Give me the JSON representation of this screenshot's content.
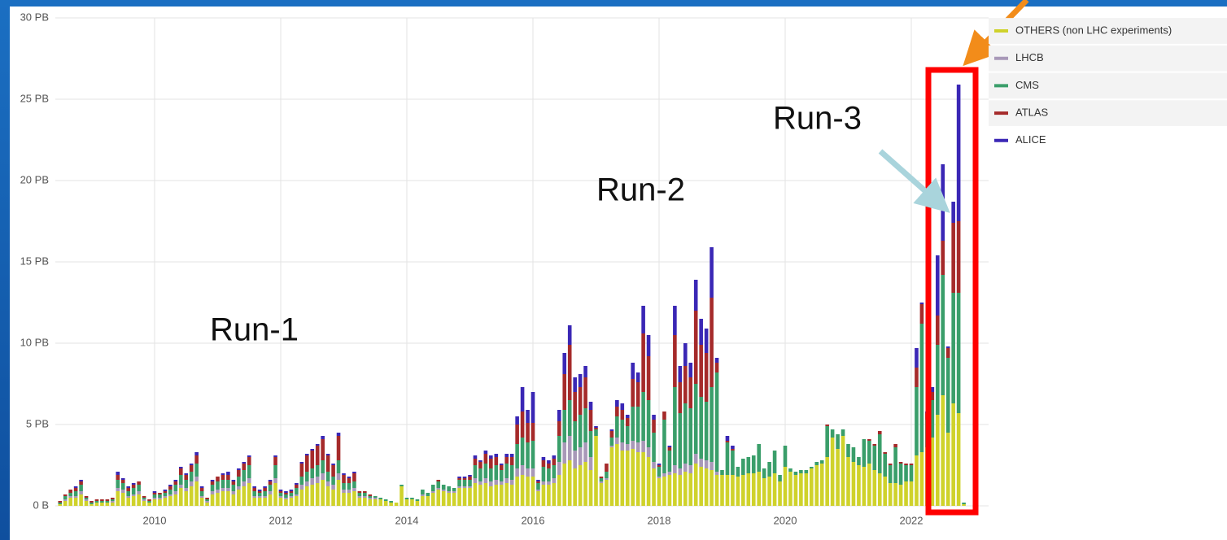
{
  "chart_data": {
    "type": "bar",
    "stacked": true,
    "annotations": [
      "Run-1",
      "Run-2",
      "Run-3"
    ],
    "categories": [
      null,
      null,
      null,
      null,
      null,
      null,
      null,
      null,
      null,
      null,
      null,
      null,
      null,
      null,
      null,
      null,
      null,
      null,
      "2010",
      null,
      null,
      null,
      null,
      null,
      null,
      null,
      null,
      null,
      null,
      null,
      null,
      null,
      null,
      null,
      null,
      null,
      null,
      null,
      null,
      null,
      null,
      null,
      "2012",
      null,
      null,
      null,
      null,
      null,
      null,
      null,
      null,
      null,
      null,
      null,
      null,
      null,
      null,
      null,
      null,
      null,
      null,
      null,
      null,
      null,
      null,
      null,
      "2014",
      null,
      null,
      null,
      null,
      null,
      null,
      null,
      null,
      null,
      null,
      null,
      null,
      null,
      null,
      null,
      null,
      null,
      null,
      null,
      null,
      null,
      null,
      null,
      "2016",
      null,
      null,
      null,
      null,
      null,
      null,
      null,
      null,
      null,
      null,
      null,
      null,
      null,
      null,
      null,
      null,
      null,
      null,
      null,
      null,
      null,
      null,
      null,
      "2018",
      null,
      null,
      null,
      null,
      null,
      null,
      null,
      null,
      null,
      null,
      null,
      null,
      null,
      null,
      null,
      null,
      null,
      null,
      null,
      null,
      null,
      null,
      null,
      "2020",
      null,
      null,
      null,
      null,
      null,
      null,
      null,
      null,
      null,
      null,
      null,
      null,
      null,
      null,
      null,
      null,
      null,
      null,
      null,
      null,
      null,
      null,
      null,
      "2022",
      null,
      null,
      null,
      null,
      null,
      null,
      null,
      null,
      null,
      null
    ],
    "series": [
      {
        "name": "OTHERS (non LHC experiments)",
        "color": "#cfd22b",
        "values": [
          0.1,
          0.3,
          0.5,
          0.5,
          0.7,
          0.3,
          0.1,
          0.2,
          0.2,
          0.2,
          0.2,
          0.9,
          0.8,
          0.5,
          0.6,
          0.7,
          0.3,
          0.2,
          0.4,
          0.4,
          0.5,
          0.6,
          0.7,
          1.1,
          0.9,
          1.2,
          1.5,
          0.5,
          0.2,
          0.7,
          0.8,
          0.9,
          0.9,
          0.7,
          1.0,
          1.2,
          1.4,
          0.5,
          0.5,
          0.5,
          0.7,
          1.4,
          0.5,
          0.4,
          0.5,
          0.6,
          1.0,
          1.2,
          1.3,
          1.4,
          1.6,
          1.2,
          1.0,
          1.6,
          0.8,
          0.8,
          0.9,
          0.5,
          0.5,
          0.4,
          0.4,
          0.4,
          0.3,
          0.2,
          0.2,
          1.2,
          0.4,
          0.4,
          0.3,
          0.6,
          0.6,
          0.8,
          1.0,
          0.9,
          0.8,
          0.8,
          1.1,
          1.1,
          1.1,
          1.4,
          1.3,
          1.4,
          1.2,
          1.3,
          1.3,
          1.4,
          1.3,
          1.8,
          1.9,
          1.8,
          1.8,
          0.9,
          1.3,
          1.3,
          1.4,
          1.9,
          2.6,
          2.8,
          2.3,
          2.5,
          2.7,
          2.2,
          4.3,
          1.4,
          1.6,
          3.6,
          3.8,
          3.4,
          3.4,
          3.5,
          3.3,
          3.3,
          3.0,
          2.3,
          1.7,
          1.8,
          1.9,
          2.0,
          1.9,
          2.1,
          2.0,
          2.6,
          2.4,
          2.3,
          2.2,
          1.9,
          1.9,
          1.9,
          1.9,
          1.8,
          1.9,
          2.0,
          2.0,
          2.1,
          1.7,
          1.8,
          2.0,
          1.5,
          2.4,
          2.1,
          1.9,
          2.0,
          2.0,
          2.3,
          2.5,
          2.6,
          3.0,
          4.2,
          3.5,
          4.3,
          3.0,
          2.7,
          2.5,
          2.4,
          2.6,
          2.2,
          2.0,
          1.8,
          1.4,
          1.4,
          1.3,
          1.5,
          1.5,
          3.1,
          3.3,
          3.6,
          4.2,
          5.6,
          6.8,
          4.5,
          6.3,
          5.7,
          0.1
        ]
      },
      {
        "name": "LHCB",
        "color": "#a898b8",
        "values": [
          0,
          0.1,
          0.1,
          0.1,
          0.2,
          0.1,
          0,
          0,
          0,
          0,
          0.1,
          0.2,
          0.2,
          0.1,
          0.1,
          0.2,
          0.1,
          0,
          0.1,
          0.1,
          0.1,
          0.1,
          0.2,
          0.2,
          0.2,
          0.3,
          0.3,
          0.1,
          0.1,
          0.2,
          0.2,
          0.2,
          0.2,
          0.2,
          0.2,
          0.3,
          0.3,
          0.1,
          0.1,
          0.1,
          0.2,
          0.3,
          0.1,
          0.1,
          0.1,
          0.1,
          0.3,
          0.3,
          0.4,
          0.4,
          0.4,
          0.3,
          0.3,
          0.4,
          0.2,
          0.2,
          0.2,
          0.1,
          0.1,
          0.1,
          0.1,
          0,
          0,
          0,
          0,
          0,
          0,
          0,
          0,
          0.1,
          0,
          0.1,
          0.1,
          0.1,
          0.1,
          0.1,
          0.1,
          0.1,
          0.1,
          0.3,
          0.2,
          0.3,
          0.3,
          0.3,
          0.2,
          0.3,
          0.3,
          0.5,
          0.6,
          0.5,
          0.5,
          0.1,
          0.2,
          0.2,
          0.3,
          0.8,
          1.3,
          1.5,
          1.1,
          1.1,
          1.2,
          0.8,
          0,
          0.1,
          0.1,
          0.1,
          0.4,
          0.5,
          0.4,
          0.5,
          0.6,
          0.7,
          0.6,
          0.4,
          0.1,
          0.2,
          0.2,
          0.5,
          0.4,
          0.5,
          0.5,
          0.6,
          0.5,
          0.5,
          0.5,
          0.2,
          0,
          0,
          0,
          0,
          0,
          0,
          0,
          0,
          0,
          0,
          0,
          0,
          0,
          0,
          0,
          0,
          0,
          0,
          0,
          0,
          0,
          0,
          0,
          0,
          0,
          0,
          0,
          0,
          0,
          0,
          0,
          0,
          0,
          0,
          0,
          0,
          0,
          0,
          0,
          0,
          0,
          0,
          0,
          0,
          0,
          0,
          0
        ]
      },
      {
        "name": "CMS",
        "color": "#3a9e6a",
        "values": [
          0.1,
          0.2,
          0.2,
          0.3,
          0.4,
          0.1,
          0.1,
          0.1,
          0.1,
          0.1,
          0.1,
          0.5,
          0.4,
          0.3,
          0.4,
          0.4,
          0.1,
          0.1,
          0.2,
          0.2,
          0.2,
          0.3,
          0.4,
          0.6,
          0.5,
          0.6,
          0.8,
          0.3,
          0.1,
          0.4,
          0.5,
          0.5,
          0.5,
          0.4,
          0.6,
          0.7,
          0.8,
          0.3,
          0.2,
          0.3,
          0.4,
          0.8,
          0.2,
          0.2,
          0.2,
          0.4,
          0.5,
          0.6,
          0.6,
          0.7,
          0.8,
          0.6,
          0.5,
          0.8,
          0.4,
          0.4,
          0.4,
          0.2,
          0.2,
          0.1,
          0.1,
          0.1,
          0.1,
          0.1,
          0,
          0.1,
          0.1,
          0.1,
          0.1,
          0.3,
          0.2,
          0.4,
          0.4,
          0.3,
          0.3,
          0.2,
          0.4,
          0.4,
          0.4,
          0.8,
          0.8,
          0.9,
          0.8,
          0.9,
          0.7,
          0.9,
          0.9,
          1.5,
          1.7,
          1.6,
          1.7,
          0.4,
          0.9,
          0.8,
          0.8,
          1.6,
          2.0,
          2.2,
          1.8,
          2.0,
          2.1,
          1.6,
          0.4,
          0.2,
          0.4,
          0.5,
          1.3,
          1.4,
          1.1,
          2.1,
          2.2,
          3.0,
          2.9,
          1.8,
          0.6,
          3.3,
          1.3,
          4.8,
          3.4,
          3.7,
          3.5,
          4.3,
          3.8,
          3.6,
          4.6,
          6.1,
          0.3,
          2.0,
          1.5,
          0.6,
          1.0,
          1.0,
          1.1,
          1.7,
          0.6,
          0.9,
          1.4,
          0.4,
          1.3,
          0.2,
          0.2,
          0.2,
          0.2,
          0.1,
          0.2,
          0.2,
          1.9,
          0.5,
          0.9,
          0.4,
          0.8,
          0.9,
          0.5,
          1.7,
          1.4,
          1.5,
          2.4,
          1.4,
          1.1,
          2.2,
          1.3,
          1.0,
          1.0,
          4.2,
          7.9,
          1.7,
          2.3,
          4.3,
          7.4,
          4.6,
          6.8,
          7.4,
          0.1
        ]
      },
      {
        "name": "ATLAS",
        "color": "#a52a2a",
        "values": [
          0.1,
          0.1,
          0.2,
          0.2,
          0.2,
          0.1,
          0.1,
          0.1,
          0.1,
          0.1,
          0.1,
          0.3,
          0.2,
          0.2,
          0.2,
          0.2,
          0.1,
          0.1,
          0.1,
          0.1,
          0.1,
          0.2,
          0.2,
          0.4,
          0.3,
          0.4,
          0.5,
          0.2,
          0.1,
          0.2,
          0.3,
          0.3,
          0.3,
          0.2,
          0.4,
          0.4,
          0.5,
          0.2,
          0.1,
          0.2,
          0.2,
          0.5,
          0.1,
          0.1,
          0.1,
          0.2,
          0.8,
          1.0,
          1.1,
          1.2,
          1.3,
          1.0,
          0.7,
          1.5,
          0.5,
          0.3,
          0.5,
          0.1,
          0.1,
          0.1,
          0,
          0,
          0,
          0,
          0,
          0,
          0,
          0,
          0,
          0,
          0,
          0,
          0.1,
          0,
          0,
          0,
          0.1,
          0.1,
          0.2,
          0.4,
          0.4,
          0.6,
          0.6,
          0.5,
          0.3,
          0.4,
          0.5,
          1.2,
          1.6,
          1.2,
          1.1,
          0.1,
          0.4,
          0.3,
          0.4,
          0.9,
          2.2,
          3.4,
          1.8,
          1.7,
          1.9,
          1.3,
          0.1,
          0.1,
          0.5,
          0.4,
          0.6,
          0.6,
          0.5,
          1.7,
          1.5,
          3.6,
          2.7,
          0.8,
          0.1,
          0.5,
          0.2,
          3.2,
          1.9,
          2.3,
          1.9,
          4.5,
          3.2,
          3.0,
          5.5,
          0.6,
          0,
          0.1,
          0.1,
          0,
          0,
          0,
          0,
          0,
          0,
          0,
          0,
          0,
          0,
          0,
          0,
          0,
          0,
          0,
          0,
          0,
          0.1,
          0,
          0,
          0,
          0,
          0,
          0,
          0,
          0.1,
          0.1,
          0.2,
          0.1,
          0.1,
          0.2,
          0.1,
          0.1,
          0.1,
          1.2,
          1.2,
          0.4,
          0.5,
          1.8,
          2.1,
          0.6,
          4.3,
          4.4,
          0
        ]
      },
      {
        "name": "ALICE",
        "color": "#3a27b5",
        "values": [
          0,
          0,
          0,
          0.1,
          0.1,
          0,
          0,
          0,
          0,
          0,
          0,
          0.2,
          0.1,
          0.1,
          0.1,
          0,
          0,
          0,
          0.1,
          0,
          0.1,
          0.1,
          0.1,
          0.1,
          0.1,
          0.1,
          0.2,
          0.1,
          0,
          0.1,
          0,
          0.1,
          0.2,
          0.1,
          0.1,
          0.1,
          0.1,
          0.1,
          0.1,
          0.1,
          0.1,
          0.1,
          0.1,
          0.1,
          0.1,
          0.1,
          0.1,
          0.1,
          0.1,
          0.1,
          0.2,
          0.1,
          0.1,
          0.2,
          0.1,
          0.1,
          0.1,
          0,
          0,
          0,
          0,
          0,
          0,
          0,
          0,
          0,
          0,
          0,
          0,
          0,
          0,
          0,
          0,
          0,
          0,
          0,
          0.1,
          0.1,
          0.1,
          0.2,
          0.1,
          0.2,
          0.2,
          0.2,
          0.1,
          0.2,
          0.2,
          0.5,
          1.5,
          0.8,
          1.9,
          0.1,
          0.2,
          0.2,
          0.2,
          0.7,
          1.3,
          1.2,
          0.9,
          0.8,
          0.7,
          0.5,
          0.1,
          0,
          0,
          0.1,
          0.4,
          0.4,
          0.2,
          1.0,
          0.6,
          1.7,
          1.3,
          0.3,
          0.1,
          0,
          0.1,
          1.8,
          1.0,
          1.4,
          0.9,
          1.9,
          1.6,
          1.5,
          3.1,
          0.3,
          0,
          0.3,
          0.2,
          0,
          0,
          0,
          0,
          0,
          0,
          0,
          0,
          0,
          0,
          0,
          0,
          0,
          0,
          0,
          0,
          0,
          0,
          0,
          0,
          0,
          0,
          0,
          0,
          0,
          0,
          0,
          0,
          0,
          0,
          0,
          0,
          0,
          0,
          1.2,
          0.1,
          0.1,
          0.3,
          3.7,
          4.7,
          0.1,
          1.3,
          8.4,
          0
        ]
      }
    ],
    "ylim": [
      0,
      30
    ],
    "yticks": [
      {
        "value": 0,
        "label": "0 B"
      },
      {
        "value": 5,
        "label": "5 PB"
      },
      {
        "value": 10,
        "label": "10 PB"
      },
      {
        "value": 15,
        "label": "15 PB"
      },
      {
        "value": 20,
        "label": "20 PB"
      },
      {
        "value": 25,
        "label": "25 PB"
      },
      {
        "value": 30,
        "label": "30 PB"
      }
    ],
    "grid": true,
    "legend": "top-right"
  }
}
